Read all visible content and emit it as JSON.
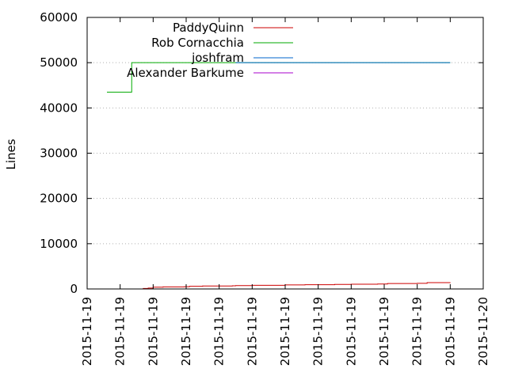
{
  "chart_data": {
    "type": "line",
    "title": "",
    "xlabel": "",
    "ylabel": "Lines",
    "ylim": [
      0,
      60000
    ],
    "yticks": [
      0,
      10000,
      20000,
      30000,
      40000,
      50000,
      60000
    ],
    "xlim": [
      0,
      12
    ],
    "xticks": [
      {
        "x": 0,
        "label": "2015-11-19"
      },
      {
        "x": 1,
        "label": "2015-11-19"
      },
      {
        "x": 2,
        "label": "2015-11-19"
      },
      {
        "x": 3,
        "label": "2015-11-19"
      },
      {
        "x": 4,
        "label": "2015-11-19"
      },
      {
        "x": 5,
        "label": "2015-11-19"
      },
      {
        "x": 6,
        "label": "2015-11-19"
      },
      {
        "x": 7,
        "label": "2015-11-19"
      },
      {
        "x": 8,
        "label": "2015-11-19"
      },
      {
        "x": 9,
        "label": "2015-11-19"
      },
      {
        "x": 10,
        "label": "2015-11-19"
      },
      {
        "x": 11,
        "label": "2015-11-19"
      },
      {
        "x": 12,
        "label": "2015-11-20"
      }
    ],
    "grid": "horizontal",
    "legend_position": "top-left",
    "series": [
      {
        "name": "PaddyQuinn",
        "color": "#cc0000",
        "points": [
          [
            1.5,
            0
          ],
          [
            1.7,
            100
          ],
          [
            1.85,
            200
          ],
          [
            2.0,
            400
          ],
          [
            2.3,
            450
          ],
          [
            2.95,
            500
          ],
          [
            3.1,
            600
          ],
          [
            3.5,
            650
          ],
          [
            4.4,
            700
          ],
          [
            4.5,
            750
          ],
          [
            5.0,
            800
          ],
          [
            5.8,
            800
          ],
          [
            6.0,
            900
          ],
          [
            6.6,
            950
          ],
          [
            7.5,
            1000
          ],
          [
            8.0,
            1050
          ],
          [
            8.8,
            1100
          ],
          [
            9.1,
            1200
          ],
          [
            10.0,
            1250
          ],
          [
            10.3,
            1400
          ],
          [
            11.0,
            1450
          ]
        ]
      },
      {
        "name": "Rob Cornacchia",
        "color": "#00aa00",
        "points": [
          [
            0.6,
            43500
          ],
          [
            1.3,
            43500
          ],
          [
            1.35,
            50000
          ],
          [
            11.0,
            50000
          ]
        ]
      },
      {
        "name": "joshfram",
        "color": "#0066cc",
        "points": [
          [
            4.5,
            50000
          ],
          [
            11.0,
            50000
          ]
        ]
      },
      {
        "name": "Alexander Barkume",
        "color": "#aa00cc",
        "points": []
      }
    ]
  }
}
